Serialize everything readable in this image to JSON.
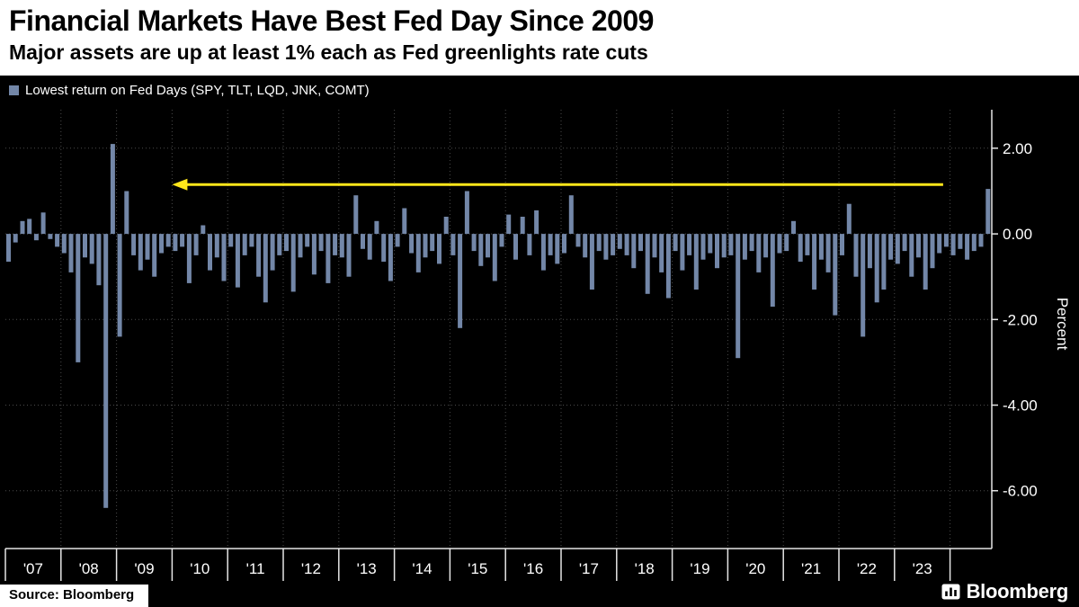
{
  "chart_data": {
    "type": "bar",
    "title": "Financial Markets Have Best Fed Day Since 2009",
    "subtitle": "Major assets are up at least 1% each as Fed greenlights rate cuts",
    "legend_label": "Lowest return on Fed Days (SPY, TLT, LQD, JNK, COMT)",
    "ylabel": "Percent",
    "ylim": [
      -7.35,
      2.9
    ],
    "ytick_values": [
      2,
      0,
      -2,
      -4,
      -6
    ],
    "ytick_labels": [
      "2.00",
      "0.00",
      "-2.00",
      "-4.00",
      "-6.00"
    ],
    "x_year_labels": [
      "'07",
      "'08",
      "'09",
      "'10",
      "'11",
      "'12",
      "'13",
      "'14",
      "'15",
      "'16",
      "'17",
      "'18",
      "'19",
      "'20",
      "'21",
      "'22",
      "'23"
    ],
    "bars_per_year": 8,
    "grid": "dotted",
    "legend_position": "top-left",
    "bar_color": "#7387a8",
    "values": [
      -0.65,
      -0.2,
      0.3,
      0.35,
      -0.15,
      0.5,
      -0.12,
      -0.3,
      -0.45,
      -0.9,
      -3.0,
      -0.55,
      -0.7,
      -1.2,
      -6.4,
      2.1,
      -2.4,
      1.0,
      -0.5,
      -0.85,
      -0.6,
      -1.0,
      -0.45,
      -0.3,
      -0.4,
      -0.3,
      -1.15,
      -0.5,
      0.2,
      -0.85,
      -0.55,
      -1.1,
      -0.3,
      -1.25,
      -0.5,
      -0.3,
      -1.0,
      -1.6,
      -0.85,
      -0.5,
      -0.4,
      -1.35,
      -0.55,
      -0.3,
      -0.95,
      -0.4,
      -1.15,
      -0.5,
      -0.55,
      -1.0,
      0.9,
      -0.35,
      -0.6,
      0.3,
      -0.65,
      -1.1,
      -0.3,
      0.6,
      -0.45,
      -0.9,
      -0.55,
      -0.4,
      -0.7,
      0.4,
      -0.5,
      -2.2,
      1.0,
      -0.4,
      -0.75,
      -0.55,
      -1.1,
      -0.3,
      0.45,
      -0.6,
      0.4,
      -0.5,
      0.55,
      -0.85,
      -0.5,
      -0.7,
      -0.45,
      0.9,
      -0.3,
      -0.55,
      -1.3,
      -0.4,
      -0.6,
      -0.5,
      -0.35,
      -0.5,
      -0.8,
      -0.4,
      -1.4,
      -0.55,
      -0.9,
      -1.5,
      -0.4,
      -0.85,
      -0.5,
      -1.3,
      -0.6,
      -0.45,
      -0.8,
      -0.55,
      -0.5,
      -2.9,
      -0.6,
      -0.4,
      -0.9,
      -0.55,
      -1.7,
      -0.45,
      -0.4,
      0.3,
      -0.65,
      -0.5,
      -1.3,
      -0.6,
      -0.9,
      -1.9,
      -0.5,
      0.7,
      -1.0,
      -2.4,
      -0.8,
      -1.6,
      -1.3,
      -0.6,
      -0.7,
      -0.4,
      -1.0,
      -0.55,
      -1.3,
      -0.8,
      -0.45,
      -0.3,
      -0.5,
      -0.35,
      -0.6,
      -0.4,
      -0.3,
      1.05
    ],
    "annotation_arrow": {
      "y_value": 1.15,
      "from_bar_index": 135,
      "to_bar_index": 24,
      "direction": "left",
      "color": "#ffe61a"
    }
  },
  "footer": {
    "source": "Source: Bloomberg",
    "logo": "Bloomberg"
  }
}
